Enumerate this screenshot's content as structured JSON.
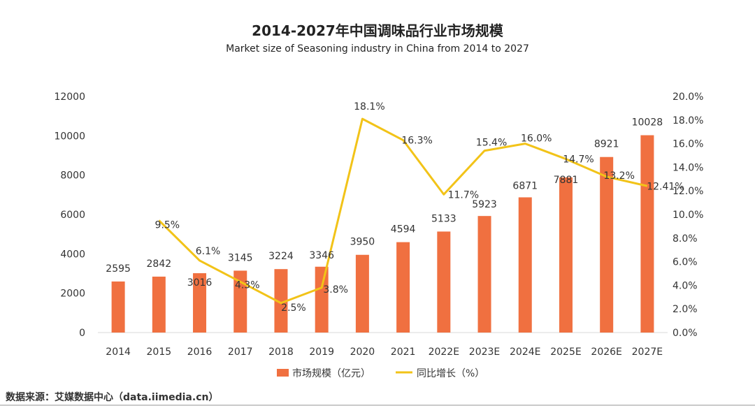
{
  "title": "2014-2027年中国调味品行业市场规模",
  "subtitle": "Market size of Seasoning industry in China from 2014 to 2027",
  "source": "数据来源：艾媒数据中心（data.iimedia.cn）",
  "colors": {
    "bar": "#f07040",
    "line": "#f2c318",
    "text": "#333333"
  },
  "chart_data": {
    "type": "bar",
    "categories": [
      "2014",
      "2015",
      "2016",
      "2017",
      "2018",
      "2019",
      "2020",
      "2021",
      "2022E",
      "2023E",
      "2024E",
      "2025E",
      "2026E",
      "2027E"
    ],
    "series": [
      {
        "name": "市场规模（亿元）",
        "type": "bar",
        "axis": "left",
        "values": [
          2595,
          2842,
          3016,
          3145,
          3224,
          3346,
          3950,
          4594,
          5133,
          5923,
          6871,
          7881,
          8921,
          10028
        ],
        "labels": [
          "2595",
          "2842",
          "3016",
          "3145",
          "3224",
          "3346",
          "3950",
          "4594",
          "5133",
          "5923",
          "6871",
          "7881",
          "8921",
          "10028"
        ]
      },
      {
        "name": "同比增长（%）",
        "type": "line",
        "axis": "right",
        "values": [
          null,
          9.5,
          6.1,
          4.3,
          2.5,
          3.8,
          18.1,
          16.3,
          11.7,
          15.4,
          16.0,
          14.7,
          13.2,
          12.41
        ],
        "labels": [
          "",
          "9.5%",
          "6.1%",
          "4.3%",
          "2.5%",
          "3.8%",
          "18.1%",
          "16.3%",
          "11.7%",
          "15.4%",
          "16.0%",
          "14.7%",
          "13.2%",
          "12.41%"
        ]
      }
    ],
    "y_left": {
      "min": 0,
      "max": 12000,
      "ticks": [
        "0",
        "2000",
        "4000",
        "6000",
        "8000",
        "10000",
        "12000"
      ]
    },
    "y_right": {
      "min": 0,
      "max": 20,
      "ticks": [
        "0.0%",
        "2.0%",
        "4.0%",
        "6.0%",
        "8.0%",
        "10.0%",
        "12.0%",
        "14.0%",
        "16.0%",
        "18.0%",
        "20.0%"
      ]
    },
    "grid": false,
    "legend": "bottom"
  }
}
